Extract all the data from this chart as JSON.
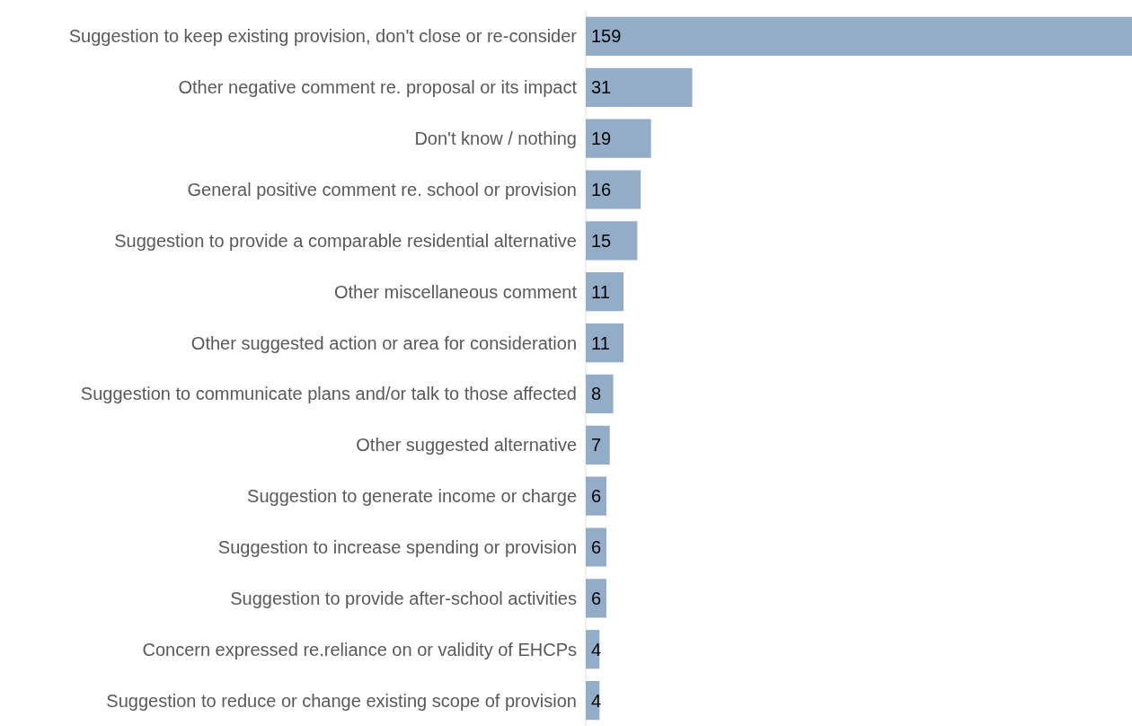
{
  "chart_data": {
    "type": "bar",
    "orientation": "horizontal",
    "data_labels": true,
    "categories": [
      "Suggestion to keep existing provision, don't close or re-consider",
      "Other negative comment re. proposal or its impact",
      "Don't know / nothing",
      "General positive comment re. school or provision",
      "Suggestion to provide a comparable residential alternative",
      "Other miscellaneous comment",
      "Other suggested action or area for consideration",
      "Suggestion to communicate plans and/or talk to those affected",
      "Other suggested alternative",
      "Suggestion to generate income or charge",
      "Suggestion to increase spending or provision",
      "Suggestion to provide after-school activities",
      "Concern expressed re.reliance on or validity of EHCPs",
      "Suggestion to reduce or change existing scope of provision"
    ],
    "values": [
      159,
      31,
      19,
      16,
      15,
      11,
      11,
      8,
      7,
      6,
      6,
      6,
      4,
      4
    ],
    "color": "#93adc9"
  }
}
